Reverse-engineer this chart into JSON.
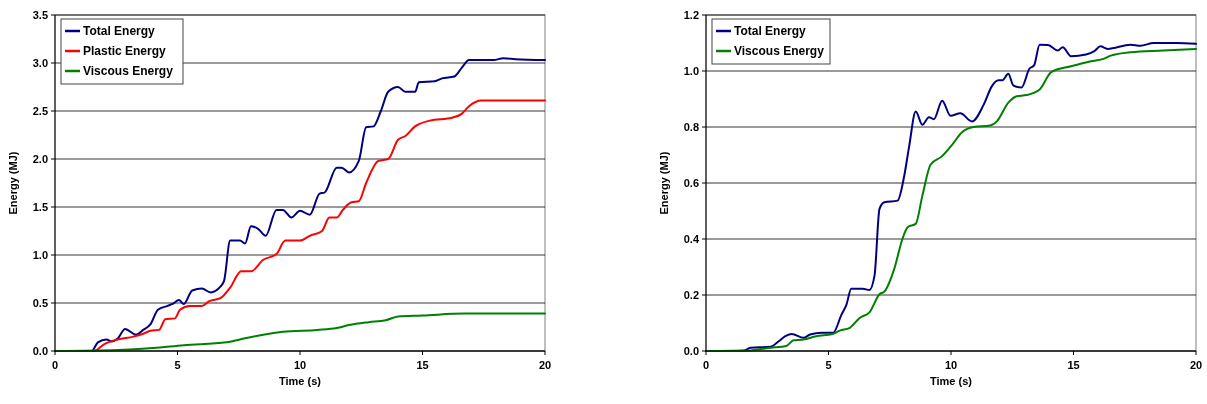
{
  "chart_data": [
    {
      "type": "line",
      "xlabel": "Time (s)",
      "ylabel": "Energy (MJ)",
      "xlim": [
        0,
        20
      ],
      "ylim": [
        0,
        3.5
      ],
      "xticks": [
        0,
        5,
        10,
        15,
        20
      ],
      "yticks": [
        {
          "value": 0,
          "label": "0.0"
        },
        {
          "value": 0.5,
          "label": "0.5"
        },
        {
          "value": 1,
          "label": "1.0"
        },
        {
          "value": 1.5,
          "label": "1.5"
        },
        {
          "value": 2,
          "label": "2.0"
        },
        {
          "value": 2.5,
          "label": "2.5"
        },
        {
          "value": 3,
          "label": "3.0"
        },
        {
          "value": 3.5,
          "label": "3.5"
        }
      ],
      "grid": "y",
      "legend": "top left",
      "series": [
        {
          "name": "Total Energy",
          "color": "#000080",
          "x": [
            0,
            1.5,
            1.75,
            2.1,
            2.3,
            2.56,
            2.86,
            3.3,
            3.6,
            3.9,
            4.2,
            4.6,
            4.8,
            5.06,
            5.26,
            5.6,
            6.0,
            6.35,
            6.75,
            6.9,
            7.15,
            7.55,
            7.76,
            8.0,
            8.3,
            8.6,
            9.04,
            9.3,
            9.65,
            10.0,
            10.4,
            10.8,
            11.0,
            11.5,
            11.7,
            12.0,
            12.4,
            12.7,
            13.0,
            13.3,
            13.6,
            14.0,
            14.3,
            14.7,
            14.85,
            15.5,
            15.8,
            16.3,
            16.6,
            16.9,
            17.4,
            17.9,
            18.3,
            18.8,
            20
          ],
          "values": [
            0,
            0,
            0.09,
            0.12,
            0.1,
            0.13,
            0.23,
            0.17,
            0.22,
            0.28,
            0.43,
            0.47,
            0.49,
            0.53,
            0.49,
            0.63,
            0.65,
            0.61,
            0.67,
            0.73,
            1.15,
            1.15,
            1.12,
            1.3,
            1.27,
            1.2,
            1.47,
            1.47,
            1.39,
            1.46,
            1.42,
            1.64,
            1.65,
            1.91,
            1.91,
            1.86,
            1.98,
            2.33,
            2.34,
            2.5,
            2.7,
            2.75,
            2.7,
            2.7,
            2.8,
            2.81,
            2.84,
            2.86,
            2.95,
            3.03,
            3.03,
            3.03,
            3.05,
            3.04,
            3.03
          ]
        },
        {
          "name": "Plastic Energy",
          "color": "#ff0000",
          "x": [
            0,
            1.6,
            2.0,
            2.56,
            3.2,
            3.6,
            3.9,
            4.25,
            4.5,
            4.9,
            5.1,
            5.5,
            6.0,
            6.3,
            6.75,
            7.15,
            7.6,
            8.0,
            8.5,
            9.04,
            9.4,
            10.0,
            10.4,
            10.9,
            11.2,
            11.5,
            11.75,
            12.1,
            12.4,
            12.7,
            13.2,
            13.6,
            14.0,
            14.3,
            14.7,
            15.3,
            16.2,
            16.6,
            16.9,
            17.4,
            20
          ],
          "values": [
            0,
            0,
            0.07,
            0.12,
            0.15,
            0.18,
            0.21,
            0.22,
            0.33,
            0.34,
            0.43,
            0.47,
            0.47,
            0.52,
            0.55,
            0.66,
            0.83,
            0.83,
            0.95,
            1.01,
            1.15,
            1.15,
            1.2,
            1.25,
            1.39,
            1.39,
            1.47,
            1.55,
            1.56,
            1.75,
            1.98,
            2.0,
            2.2,
            2.24,
            2.34,
            2.4,
            2.43,
            2.47,
            2.55,
            2.61,
            2.61
          ]
        },
        {
          "name": "Viscous Energy",
          "color": "#008000",
          "x": [
            0,
            2.56,
            4.0,
            5.26,
            7.0,
            7.55,
            8.5,
            9.3,
            10.7,
            11.5,
            12.0,
            12.8,
            13.5,
            14.0,
            15.0,
            16.7,
            20
          ],
          "values": [
            0,
            0.01,
            0.03,
            0.06,
            0.09,
            0.12,
            0.17,
            0.2,
            0.22,
            0.24,
            0.27,
            0.3,
            0.32,
            0.36,
            0.37,
            0.39,
            0.39
          ]
        }
      ]
    },
    {
      "type": "line",
      "xlabel": "Time (s)",
      "ylabel": "Energy (MJ)",
      "xlim": [
        0,
        20
      ],
      "ylim": [
        0,
        1.2
      ],
      "xticks": [
        0,
        5,
        10,
        15,
        20
      ],
      "yticks": [
        {
          "value": 0,
          "label": "0.0"
        },
        {
          "value": 0.2,
          "label": "0.2"
        },
        {
          "value": 0.4,
          "label": "0.4"
        },
        {
          "value": 0.6,
          "label": "0.6"
        },
        {
          "value": 0.8,
          "label": "0.8"
        },
        {
          "value": 1,
          "label": "1.0"
        },
        {
          "value": 1.2,
          "label": "1.2"
        }
      ],
      "grid": "y",
      "legend": "top left",
      "series": [
        {
          "name": "Total Energy",
          "color": "#000080",
          "x": [
            0,
            1.55,
            1.82,
            2.63,
            2.97,
            3.24,
            3.5,
            3.98,
            4.25,
            4.72,
            5.19,
            5.53,
            5.73,
            5.93,
            6.4,
            6.67,
            6.88,
            7.08,
            7.28,
            7.82,
            8.09,
            8.29,
            8.56,
            8.83,
            9.1,
            9.3,
            9.64,
            9.98,
            10.38,
            10.86,
            11.33,
            11.67,
            11.94,
            12.1,
            12.34,
            12.54,
            12.88,
            13.2,
            13.39,
            13.62,
            13.96,
            14.36,
            14.56,
            14.9,
            15.51,
            15.85,
            16.1,
            16.39,
            17.33,
            17.73,
            18.27,
            19.2,
            20
          ],
          "values": [
            0,
            0.002,
            0.012,
            0.015,
            0.035,
            0.053,
            0.061,
            0.047,
            0.059,
            0.065,
            0.065,
            0.13,
            0.165,
            0.222,
            0.222,
            0.218,
            0.27,
            0.507,
            0.531,
            0.537,
            0.625,
            0.73,
            0.855,
            0.808,
            0.835,
            0.828,
            0.894,
            0.84,
            0.849,
            0.82,
            0.879,
            0.946,
            0.967,
            0.967,
            0.99,
            0.949,
            0.941,
            1.008,
            1.02,
            1.094,
            1.093,
            1.073,
            1.085,
            1.053,
            1.059,
            1.071,
            1.088,
            1.079,
            1.094,
            1.09,
            1.1,
            1.1,
            1.097
          ]
        },
        {
          "name": "Viscous Energy",
          "color": "#008000",
          "x": [
            0,
            1.55,
            2.63,
            3.28,
            3.57,
            3.98,
            4.5,
            5.17,
            5.46,
            5.87,
            6.27,
            6.68,
            7.08,
            7.28,
            7.69,
            8.02,
            8.23,
            8.56,
            8.83,
            9.17,
            9.64,
            10.05,
            10.45,
            10.92,
            11.6,
            11.87,
            12.34,
            12.68,
            13.08,
            13.62,
            14.09,
            14.9,
            15.71,
            16.25,
            16.52,
            17.33,
            18.68,
            20
          ],
          "values": [
            0,
            0,
            0.012,
            0.018,
            0.038,
            0.041,
            0.053,
            0.061,
            0.073,
            0.083,
            0.118,
            0.139,
            0.203,
            0.212,
            0.295,
            0.401,
            0.442,
            0.454,
            0.554,
            0.666,
            0.696,
            0.737,
            0.781,
            0.8,
            0.805,
            0.82,
            0.887,
            0.91,
            0.914,
            0.934,
            0.996,
            1.017,
            1.035,
            1.044,
            1.055,
            1.067,
            1.073,
            1.079
          ]
        }
      ]
    }
  ]
}
